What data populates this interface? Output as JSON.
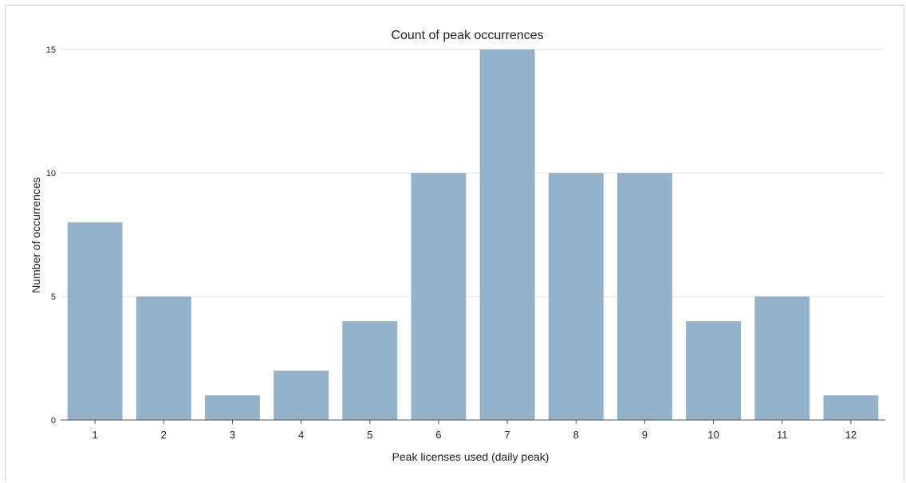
{
  "chart_data": {
    "type": "bar",
    "title": "Count of peak occurrences",
    "xlabel": "Peak licenses used (daily peak)",
    "ylabel": "Number of occurrences",
    "categories": [
      "1",
      "2",
      "3",
      "4",
      "5",
      "6",
      "7",
      "8",
      "9",
      "10",
      "11",
      "12"
    ],
    "values": [
      8,
      5,
      1,
      2,
      4,
      10,
      15,
      10,
      10,
      4,
      5,
      1
    ],
    "ylim": [
      0,
      15
    ],
    "yticks": [
      0,
      5,
      10,
      15
    ],
    "grid": true,
    "bar_color": "#94b3cb",
    "grid_color": "#e3e3e3",
    "axis_color": "#555555"
  }
}
